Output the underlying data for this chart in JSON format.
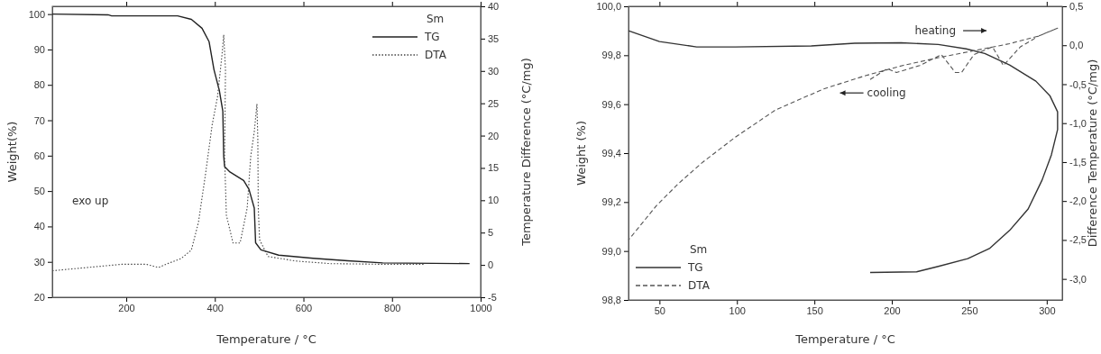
{
  "chart_data": [
    {
      "type": "line",
      "xlabel": "Temperature / °C",
      "ylabel": "Weight(%)",
      "y2label": "Temperature Difference (°C/mg)",
      "legend_title": "Sm",
      "legend": "top right",
      "xlim": [
        33,
        1000
      ],
      "ylim": [
        20,
        102.2
      ],
      "y2lim": [
        -5,
        40
      ],
      "xticks": [
        200,
        400,
        600,
        800,
        1000
      ],
      "yticks": [
        20,
        30,
        40,
        50,
        60,
        70,
        80,
        90,
        100
      ],
      "y2ticks": [
        -5,
        0,
        5,
        10,
        15,
        20,
        25,
        30,
        35,
        40
      ],
      "annotations": [
        "exo up"
      ],
      "series": [
        {
          "name": "TG",
          "color": "#222222",
          "line_style": "solid",
          "x": [
            33,
            159,
            167,
            316,
            347,
            371,
            387,
            398,
            410,
            418,
            420,
            422,
            434,
            465,
            477,
            489,
            492,
            504,
            544,
            622,
            700,
            779,
            975
          ],
          "values": [
            100,
            99.8,
            99.5,
            99.5,
            98.5,
            96,
            92.2,
            84.3,
            78.5,
            72.6,
            59.8,
            56.9,
            55.4,
            53,
            50.5,
            45.2,
            35.4,
            33.4,
            31.9,
            31,
            30.3,
            29.7,
            29.5
          ]
        },
        {
          "name": "DTA",
          "color": "#444444",
          "line_style": "dotted",
          "axis": "y2",
          "x": [
            33,
            112,
            190,
            245,
            273,
            293,
            324,
            347,
            363,
            379,
            394,
            406,
            416,
            420,
            424,
            422,
            426,
            441,
            457,
            473,
            481,
            489,
            495,
            497,
            498,
            501,
            520,
            583,
            661,
            779,
            873
          ],
          "values": [
            -0.9,
            -0.4,
            0.1,
            0.1,
            -0.4,
            0.2,
            1,
            2.3,
            6.6,
            14.1,
            21.7,
            26,
            32.4,
            35.6,
            30.2,
            16.8,
            7.7,
            3.4,
            3.4,
            8.8,
            16.8,
            20.6,
            24.9,
            19.5,
            8.8,
            3.9,
            1.3,
            0.6,
            0.2,
            0.1,
            0.1
          ]
        }
      ]
    },
    {
      "type": "line",
      "xlabel": "Temperature / °C",
      "ylabel": "Weight (%)",
      "y2label": "Difference Temperature (°C/mg)",
      "legend_title": "Sm",
      "legend": "bottom left",
      "xlim": [
        30,
        310
      ],
      "ylim": [
        98.8,
        100.0
      ],
      "y2lim": [
        -3.27,
        0.5
      ],
      "xticks": [
        50,
        100,
        150,
        200,
        250,
        300
      ],
      "yticks": [
        {
          "value": 98.8,
          "label": "98,8"
        },
        {
          "value": 99,
          "label": "99,0"
        },
        {
          "value": 99.2,
          "label": "99,2"
        },
        {
          "value": 99.4,
          "label": "99,4"
        },
        {
          "value": 99.6,
          "label": "99,6"
        },
        {
          "value": 99.8,
          "label": "99,8"
        },
        {
          "value": 100,
          "label": "100,0"
        }
      ],
      "y2ticks": [
        {
          "value": -3,
          "label": "-3,0"
        },
        {
          "value": -2.5,
          "label": "-2,5"
        },
        {
          "value": -2,
          "label": "-2,0"
        },
        {
          "value": -1.5,
          "label": "-1,5"
        },
        {
          "value": -1,
          "label": "-1,0"
        },
        {
          "value": -0.5,
          "label": "-0,5"
        },
        {
          "value": 0,
          "label": "0,0"
        },
        {
          "value": 0.5,
          "label": "0,5"
        }
      ],
      "annotations": [
        "heating",
        "cooling"
      ],
      "series": [
        {
          "name": "TG",
          "color": "#333333",
          "line_style": "solid",
          "x": [
            30,
            50,
            74,
            99,
            148,
            176,
            206,
            230,
            248,
            260,
            276,
            293,
            302,
            307,
            307,
            303,
            297,
            288,
            276,
            263,
            249,
            230,
            216,
            186
          ],
          "values": [
            99.9,
            99.856,
            99.834,
            99.834,
            99.838,
            99.849,
            99.851,
            99.844,
            99.826,
            99.807,
            99.76,
            99.694,
            99.635,
            99.569,
            99.496,
            99.393,
            99.29,
            99.172,
            99.084,
            99.01,
            98.969,
            98.937,
            98.915,
            98.912
          ]
        },
        {
          "name": "DTA",
          "color": "#555555",
          "line_style": "dashed",
          "axis": "y2",
          "x": [
            186,
            197,
            203,
            218,
            232,
            241,
            245,
            253,
            265,
            272,
            283,
            295,
            307,
            295,
            276,
            253,
            230,
            207,
            183,
            156,
            125,
            99,
            78,
            62,
            48,
            30
          ],
          "values": [
            -0.44,
            -0.3,
            -0.35,
            -0.26,
            -0.12,
            -0.35,
            -0.35,
            -0.12,
            -0.02,
            -0.26,
            -0.02,
            0.12,
            0.22,
            0.12,
            0.02,
            -0.07,
            -0.16,
            -0.26,
            -0.39,
            -0.56,
            -0.83,
            -1.18,
            -1.5,
            -1.78,
            -2.06,
            -2.5
          ]
        }
      ]
    }
  ]
}
